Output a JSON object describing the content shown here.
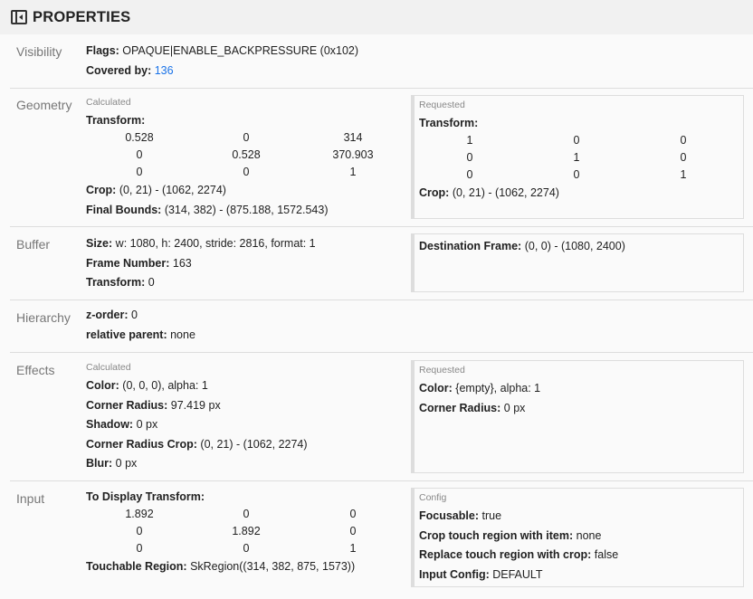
{
  "header": {
    "title": "PROPERTIES",
    "icon": "panel-collapse-icon"
  },
  "visibility": {
    "label": "Visibility",
    "flags_key": "Flags:",
    "flags": "OPAQUE|ENABLE_BACKPRESSURE (0x102)",
    "covered_key": "Covered by:",
    "covered": "136"
  },
  "geometry": {
    "label": "Geometry",
    "calculated": {
      "title": "Calculated",
      "transform_key": "Transform:",
      "matrix": [
        [
          "0.528",
          "0",
          "314"
        ],
        [
          "0",
          "0.528",
          "370.903"
        ],
        [
          "0",
          "0",
          "1"
        ]
      ],
      "crop_key": "Crop:",
      "crop": "(0, 21) - (1062, 2274)",
      "bounds_key": "Final Bounds:",
      "bounds": "(314, 382) - (875.188, 1572.543)"
    },
    "requested": {
      "title": "Requested",
      "transform_key": "Transform:",
      "matrix": [
        [
          "1",
          "0",
          "0"
        ],
        [
          "0",
          "1",
          "0"
        ],
        [
          "0",
          "0",
          "1"
        ]
      ],
      "crop_key": "Crop:",
      "crop": "(0, 21) - (1062, 2274)"
    }
  },
  "buffer": {
    "label": "Buffer",
    "size_key": "Size:",
    "size": "w: 1080, h: 2400, stride: 2816, format: 1",
    "frame_key": "Frame Number:",
    "frame": "163",
    "transform_key": "Transform:",
    "transform": "0",
    "dest_key": "Destination Frame:",
    "dest": "(0, 0) - (1080, 2400)"
  },
  "hierarchy": {
    "label": "Hierarchy",
    "z_key": "z-order:",
    "z": "0",
    "parent_key": "relative parent:",
    "parent": "none"
  },
  "effects": {
    "label": "Effects",
    "calculated": {
      "title": "Calculated",
      "color_key": "Color:",
      "color": "(0, 0, 0), alpha: 1",
      "radius_key": "Corner Radius:",
      "radius": "97.419 px",
      "shadow_key": "Shadow:",
      "shadow": "0 px",
      "crop_key": "Corner Radius Crop:",
      "crop": "(0, 21) - (1062, 2274)",
      "blur_key": "Blur:",
      "blur": "0 px"
    },
    "requested": {
      "title": "Requested",
      "color_key": "Color:",
      "color": "{empty}, alpha: 1",
      "radius_key": "Corner Radius:",
      "radius": "0 px"
    }
  },
  "input": {
    "label": "Input",
    "transform_key": "To Display Transform:",
    "matrix": [
      [
        "1.892",
        "0",
        "0"
      ],
      [
        "0",
        "1.892",
        "0"
      ],
      [
        "0",
        "0",
        "1"
      ]
    ],
    "touch_key": "Touchable Region:",
    "touch": "SkRegion((314, 382, 875, 1573))",
    "config": {
      "title": "Config",
      "focusable_key": "Focusable:",
      "focusable": "true",
      "crop_touch_key": "Crop touch region with item:",
      "crop_touch": "none",
      "replace_key": "Replace touch region with crop:",
      "replace": "false",
      "input_config_key": "Input Config:",
      "input_config": "DEFAULT"
    }
  }
}
